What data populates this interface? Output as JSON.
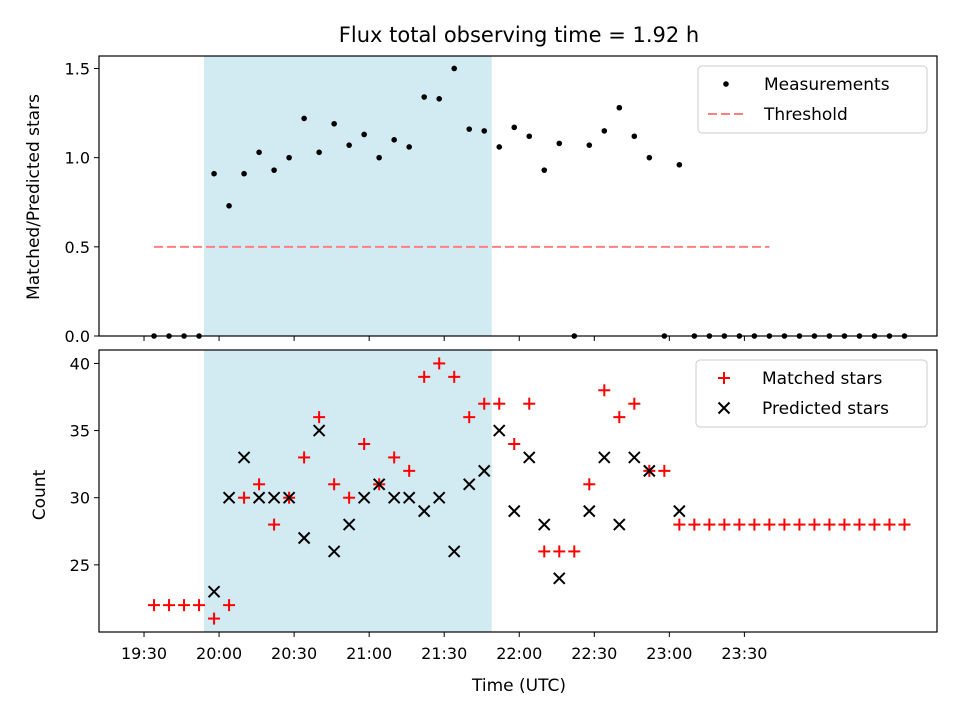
{
  "chart_data": [
    {
      "type": "scatter",
      "title": "Flux total observing time = 1.92 h",
      "xlabel": "",
      "ylabel": "Matched/Predicted stars",
      "ylim": [
        0,
        1.57
      ],
      "yticks": [
        "0.0",
        "0.5",
        "1.0",
        "1.5"
      ],
      "shaded_region": {
        "x_start": "19:54",
        "x_end": "21:49",
        "color": "#add8e6"
      },
      "legend": {
        "placement": "top-right",
        "entries": [
          "Measurements",
          "Threshold"
        ]
      },
      "series": [
        {
          "name": "Measurements",
          "marker": "dot",
          "color": "#000000",
          "x": [
            "19:34",
            "19:40",
            "19:46",
            "19:52",
            "19:58",
            "20:04",
            "20:10",
            "20:16",
            "20:22",
            "20:28",
            "20:34",
            "20:40",
            "20:46",
            "20:52",
            "20:58",
            "21:04",
            "21:10",
            "21:16",
            "21:22",
            "21:28",
            "21:34",
            "21:40",
            "21:46",
            "21:52",
            "21:58",
            "22:04",
            "22:10",
            "22:16",
            "22:22",
            "22:28",
            "22:34",
            "22:40",
            "22:46",
            "22:52",
            "22:58",
            "23:04",
            "23:10",
            "23:16",
            "23:22",
            "23:28",
            "23:34",
            "23:40",
            "23:46",
            "23:52",
            "23:58",
            "24:04",
            "24:10",
            "24:16",
            "24:22",
            "24:28",
            "24:34"
          ],
          "y": [
            0,
            0,
            0,
            0,
            0.91,
            0.73,
            0.91,
            1.03,
            0.93,
            1.0,
            1.22,
            1.03,
            1.19,
            1.07,
            1.13,
            1.0,
            1.1,
            1.06,
            1.34,
            1.33,
            1.5,
            1.16,
            1.15,
            1.06,
            1.17,
            1.12,
            0.93,
            1.08,
            0,
            1.07,
            1.15,
            1.28,
            1.12,
            1.0,
            0,
            0.96,
            0,
            0,
            0,
            0,
            0,
            0,
            0,
            0,
            0,
            0,
            0,
            0,
            0,
            0,
            0
          ]
        },
        {
          "name": "Threshold",
          "style": "dashed",
          "color": "#ff7f7f",
          "x": [
            "19:34",
            "23:40"
          ],
          "y": [
            0.5,
            0.5
          ]
        }
      ]
    },
    {
      "type": "scatter",
      "title": "",
      "xlabel": "Time (UTC)",
      "ylabel": "Count",
      "ylim": [
        20,
        41
      ],
      "yticks": [
        "25",
        "30",
        "35",
        "40"
      ],
      "xticks": [
        "19:30",
        "20:00",
        "20:30",
        "21:00",
        "21:30",
        "22:00",
        "22:30",
        "23:00",
        "23:30"
      ],
      "shaded_region": {
        "x_start": "19:54",
        "x_end": "21:49",
        "color": "#add8e6"
      },
      "legend": {
        "placement": "top-right",
        "entries": [
          "Matched stars",
          "Predicted stars"
        ]
      },
      "series": [
        {
          "name": "Matched stars",
          "marker": "plus",
          "color": "#ff0000",
          "x": [
            "19:34",
            "19:40",
            "19:46",
            "19:52",
            "19:58",
            "20:04",
            "20:10",
            "20:16",
            "20:22",
            "20:28",
            "20:34",
            "20:40",
            "20:46",
            "20:52",
            "20:58",
            "21:04",
            "21:10",
            "21:16",
            "21:22",
            "21:28",
            "21:34",
            "21:40",
            "21:46",
            "21:52",
            "21:58",
            "22:04",
            "22:10",
            "22:16",
            "22:22",
            "22:28",
            "22:34",
            "22:40",
            "22:46",
            "22:52",
            "22:58",
            "23:04",
            "23:10",
            "23:16",
            "23:22",
            "23:28",
            "23:34",
            "23:40",
            "23:46",
            "23:52",
            "23:58",
            "24:04",
            "24:10",
            "24:16",
            "24:22",
            "24:28",
            "24:34"
          ],
          "y": [
            22,
            22,
            22,
            22,
            21,
            22,
            30,
            31,
            28,
            30,
            33,
            36,
            31,
            30,
            34,
            31,
            33,
            32,
            39,
            40,
            39,
            36,
            37,
            37,
            34,
            37,
            26,
            26,
            26,
            31,
            38,
            36,
            37,
            32,
            32,
            28,
            28,
            28,
            28,
            28,
            28,
            28,
            28,
            28,
            28,
            28,
            28,
            28,
            28,
            28,
            28
          ]
        },
        {
          "name": "Predicted stars",
          "marker": "x",
          "color": "#000000",
          "x": [
            "19:58",
            "20:04",
            "20:10",
            "20:16",
            "20:22",
            "20:28",
            "20:34",
            "20:40",
            "20:46",
            "20:52",
            "20:58",
            "21:04",
            "21:10",
            "21:16",
            "21:22",
            "21:28",
            "21:34",
            "21:40",
            "21:46",
            "21:52",
            "21:58",
            "22:04",
            "22:10",
            "22:16",
            "22:28",
            "22:34",
            "22:40",
            "22:46",
            "22:52",
            "23:04"
          ],
          "y": [
            23,
            30,
            33,
            30,
            30,
            30,
            27,
            35,
            26,
            28,
            30,
            31,
            30,
            30,
            29,
            30,
            26,
            31,
            32,
            35,
            29,
            33,
            28,
            24,
            29,
            33,
            28,
            33,
            32,
            29
          ]
        }
      ]
    }
  ]
}
